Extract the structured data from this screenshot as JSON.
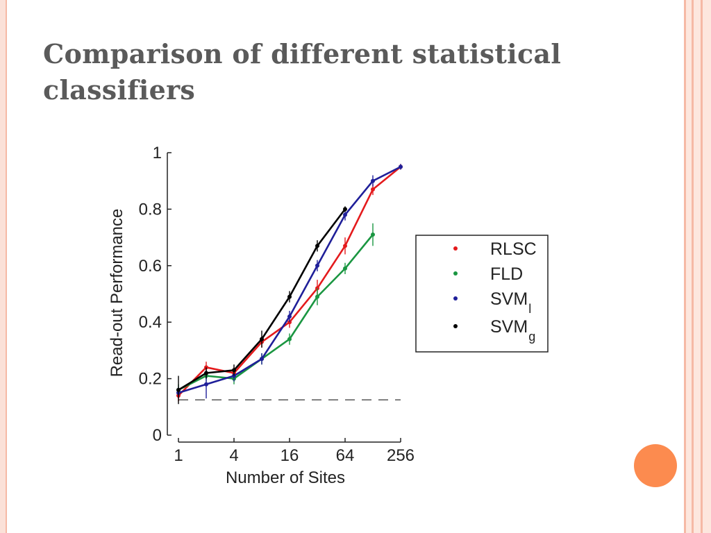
{
  "slide": {
    "title": "Comparison of different statistical classifiers"
  },
  "colors": {
    "border": "#f6b9a5",
    "border_light": "#fde7de",
    "accent_dot": "#fc8b4f",
    "title": "#5a5a5a"
  },
  "chart_data": {
    "type": "line",
    "xlabel": "Number of Sites",
    "ylabel": "Read-out Performance",
    "x_scale": "log2",
    "xlim": [
      1,
      256
    ],
    "ylim": [
      0,
      1
    ],
    "x_ticks": [
      1,
      4,
      16,
      64,
      256
    ],
    "x_tick_labels": [
      "1",
      "4",
      "16",
      "64",
      "256"
    ],
    "y_ticks": [
      0,
      0.2,
      0.4,
      0.6,
      0.8,
      1
    ],
    "y_tick_labels": [
      "0",
      "0.2",
      "0.4",
      "0.6",
      "0.8",
      "1"
    ],
    "grid": false,
    "chance_level": 0.125,
    "legend_placement": "right",
    "series": [
      {
        "name": "RLSC",
        "sub": "",
        "color": "#e41a1c",
        "x": [
          1,
          2,
          4,
          8,
          16,
          32,
          64,
          128,
          256
        ],
        "y": [
          0.14,
          0.24,
          0.22,
          0.33,
          0.4,
          0.52,
          0.67,
          0.87,
          0.95
        ],
        "err": [
          0.02,
          0.02,
          0.02,
          0.02,
          0.02,
          0.03,
          0.03,
          0.02,
          0.01
        ]
      },
      {
        "name": "FLD",
        "sub": "",
        "color": "#1a9641",
        "x": [
          1,
          2,
          4,
          8,
          16,
          32,
          64,
          128
        ],
        "y": [
          0.16,
          0.21,
          0.2,
          0.27,
          0.34,
          0.49,
          0.59,
          0.71
        ],
        "err": [
          0.02,
          0.02,
          0.02,
          0.02,
          0.02,
          0.03,
          0.02,
          0.04
        ]
      },
      {
        "name": "SVM",
        "sub": "l",
        "color": "#1f1f99",
        "x": [
          1,
          2,
          4,
          8,
          16,
          32,
          64,
          128,
          256
        ],
        "y": [
          0.15,
          0.18,
          0.21,
          0.27,
          0.42,
          0.6,
          0.78,
          0.9,
          0.95
        ],
        "err": [
          0.02,
          0.05,
          0.02,
          0.02,
          0.02,
          0.02,
          0.02,
          0.02,
          0.01
        ]
      },
      {
        "name": "SVM",
        "sub": "g",
        "color": "#000000",
        "x": [
          1,
          2,
          4,
          8,
          16,
          32,
          64
        ],
        "y": [
          0.16,
          0.22,
          0.23,
          0.34,
          0.49,
          0.67,
          0.8
        ],
        "err": [
          0.05,
          0.02,
          0.02,
          0.03,
          0.02,
          0.02,
          0.01
        ]
      }
    ]
  }
}
